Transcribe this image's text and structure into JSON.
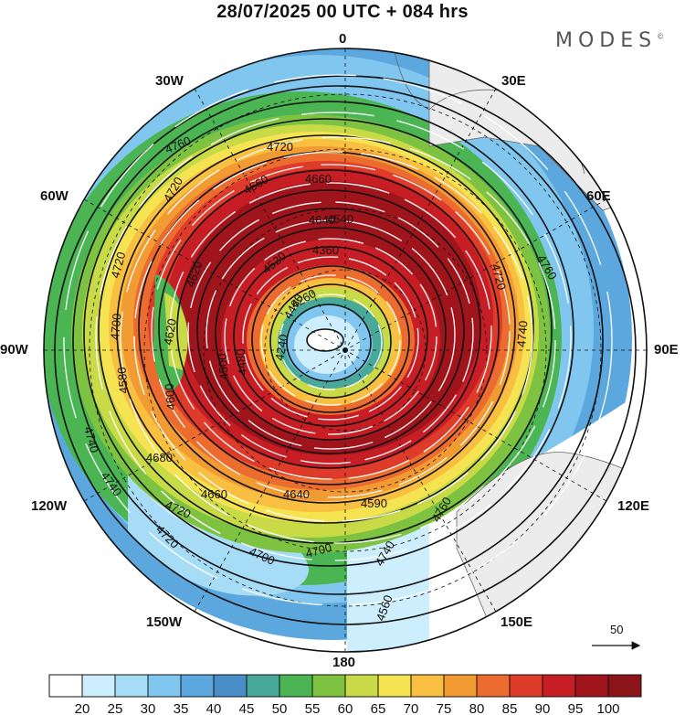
{
  "title": "28/07/2025  00 UTC  + 084 hrs",
  "brand": "MODES",
  "brand_mark": "©",
  "longitude_labels": {
    "n": "0",
    "ne30": "30E",
    "ne60": "60E",
    "e": "90E",
    "se120": "120E",
    "se150": "150E",
    "s": "180",
    "sw150": "150W",
    "sw120": "120W",
    "w": "90W",
    "nw60": "60W",
    "nw30": "30W"
  },
  "vector_reference": {
    "label": "50"
  },
  "colorbar": {
    "ticks": [
      "20",
      "25",
      "30",
      "35",
      "40",
      "45",
      "50",
      "55",
      "60",
      "65",
      "70",
      "75",
      "80",
      "85",
      "90",
      "95",
      "100"
    ],
    "colors": [
      "#ffffff",
      "#cdeefc",
      "#a7dcf7",
      "#80c6ee",
      "#5ca7de",
      "#4a8ec8",
      "#48a89a",
      "#4bb554",
      "#7dc241",
      "#c8da46",
      "#f6e352",
      "#f8bf40",
      "#f39b33",
      "#ec6b2e",
      "#de3b2a",
      "#c61e24",
      "#a0141c",
      "#8a1418"
    ]
  },
  "contour_labels": [
    "4760",
    "4720",
    "4720",
    "4660",
    "4660",
    "4640",
    "4720",
    "4720",
    "4700",
    "4620",
    "4580",
    "4600",
    "4540",
    "4520",
    "4500",
    "4480",
    "4460",
    "4360",
    "4260",
    "4240",
    "4760",
    "4720",
    "4740",
    "4680",
    "4640",
    "4660",
    "4720",
    "4700",
    "4700",
    "4740",
    "4760",
    "4740",
    "4740",
    "4590",
    "4560",
    "4620"
  ],
  "legend_title": ""
}
